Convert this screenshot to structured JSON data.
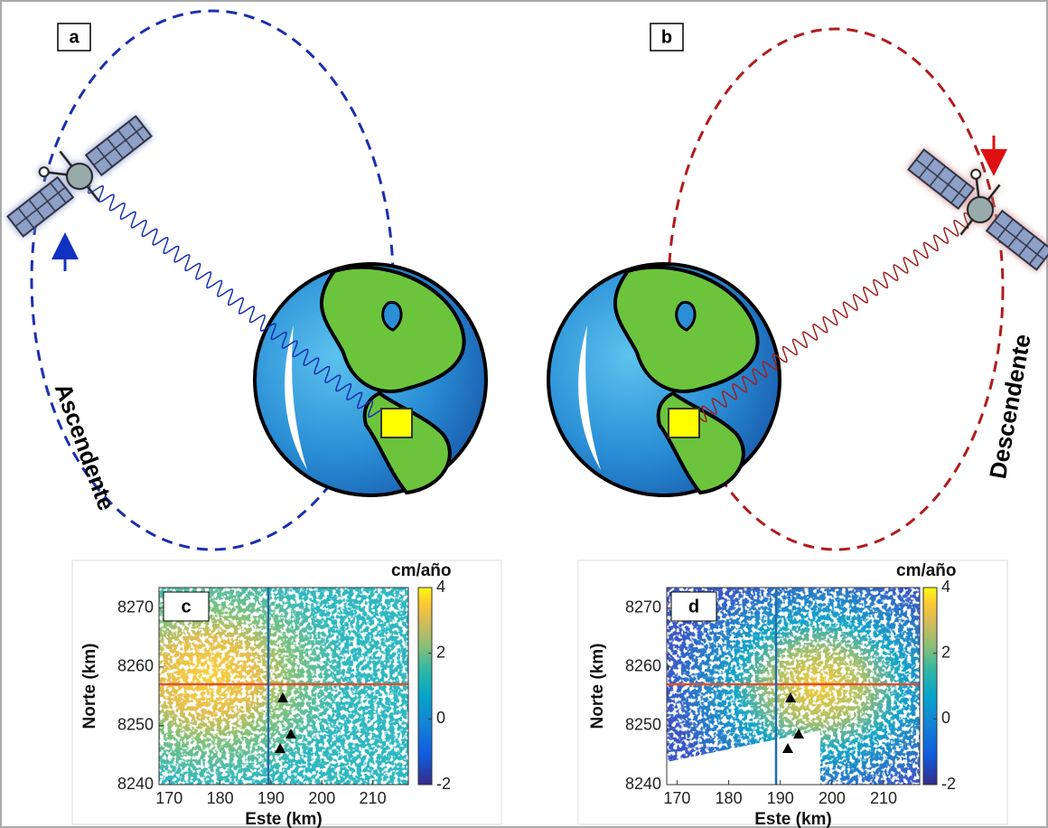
{
  "panels": [
    {
      "label": "a",
      "orbit": "Ascendente"
    },
    {
      "label": "b",
      "orbit": "Descendente"
    }
  ],
  "maps": [
    {
      "label": "c",
      "xlabel": "Este (km)",
      "ylabel": "Norte (km)",
      "xlim": [
        168,
        217
      ],
      "ylim": [
        8240,
        8273.5
      ],
      "xticks": [
        170,
        180,
        190,
        200,
        210
      ],
      "yticks": [
        8240,
        8250,
        8260,
        8270
      ],
      "colorbar": {
        "title": "cm/año",
        "lim": [
          -2,
          4
        ],
        "ticks": [
          4,
          2,
          0,
          -2
        ]
      }
    },
    {
      "label": "d",
      "xlabel": "Este (km)",
      "ylabel": "Norte (km)",
      "xlim": [
        168,
        217
      ],
      "ylim": [
        8240,
        8273.5
      ],
      "xticks": [
        170,
        180,
        190,
        200,
        210
      ],
      "yticks": [
        8240,
        8250,
        8260,
        8270
      ],
      "colorbar": {
        "title": "cm/año",
        "lim": [
          -2,
          4
        ],
        "ticks": [
          4,
          2,
          0,
          -2
        ]
      }
    }
  ]
}
